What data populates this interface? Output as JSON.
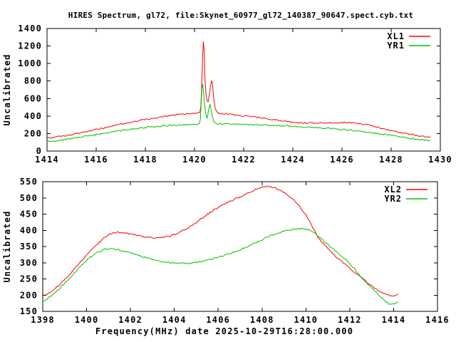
{
  "title": "HIRES Spectrum, gl72, file:Skynet_60977_gl72_140387_90647.spect.cyb.txt",
  "colors": {
    "red_series": "#ff0000",
    "green_series": "#00c000",
    "axis": "#000000",
    "background": "#ffffff",
    "text": "#000000"
  },
  "chart_data": [
    {
      "type": "line",
      "title": "",
      "xlabel": "",
      "ylabel": "Uncalibrated",
      "xlim": [
        1414,
        1430
      ],
      "ylim": [
        0,
        1400
      ],
      "xticks": [
        1414,
        1416,
        1418,
        1420,
        1422,
        1424,
        1426,
        1428,
        1430
      ],
      "yticks": [
        0,
        200,
        400,
        600,
        800,
        1000,
        1200,
        1400
      ],
      "grid": false,
      "legend_position": "top-right",
      "series": [
        {
          "name": "XL1",
          "color": "#ff0000",
          "points": [
            [
              1414.0,
              150
            ],
            [
              1414.3,
              158
            ],
            [
              1414.6,
              170
            ],
            [
              1415.0,
              188
            ],
            [
              1415.4,
              210
            ],
            [
              1415.8,
              233
            ],
            [
              1416.2,
              257
            ],
            [
              1416.6,
              283
            ],
            [
              1417.0,
              308
            ],
            [
              1417.4,
              330
            ],
            [
              1417.8,
              352
            ],
            [
              1418.2,
              370
            ],
            [
              1418.6,
              388
            ],
            [
              1419.0,
              405
            ],
            [
              1419.4,
              418
            ],
            [
              1419.8,
              428
            ],
            [
              1420.1,
              434
            ],
            [
              1420.22,
              440
            ],
            [
              1420.26,
              520
            ],
            [
              1420.3,
              800
            ],
            [
              1420.33,
              1080
            ],
            [
              1420.36,
              1250
            ],
            [
              1420.39,
              1150
            ],
            [
              1420.42,
              870
            ],
            [
              1420.46,
              660
            ],
            [
              1420.5,
              580
            ],
            [
              1420.55,
              555
            ],
            [
              1420.58,
              600
            ],
            [
              1420.62,
              680
            ],
            [
              1420.66,
              760
            ],
            [
              1420.7,
              805
            ],
            [
              1420.74,
              740
            ],
            [
              1420.78,
              600
            ],
            [
              1420.84,
              490
            ],
            [
              1420.92,
              445
            ],
            [
              1421.0,
              432
            ],
            [
              1421.4,
              420
            ],
            [
              1421.8,
              408
            ],
            [
              1422.2,
              396
            ],
            [
              1422.6,
              383
            ],
            [
              1423.0,
              368
            ],
            [
              1423.4,
              352
            ],
            [
              1423.8,
              337
            ],
            [
              1424.2,
              325
            ],
            [
              1424.6,
              320
            ],
            [
              1425.0,
              320
            ],
            [
              1425.4,
              322
            ],
            [
              1425.8,
              324
            ],
            [
              1426.2,
              324
            ],
            [
              1426.6,
              318
            ],
            [
              1427.0,
              300
            ],
            [
              1427.4,
              275
            ],
            [
              1427.8,
              248
            ],
            [
              1428.2,
              222
            ],
            [
              1428.6,
              200
            ],
            [
              1429.0,
              180
            ],
            [
              1429.3,
              168
            ],
            [
              1429.6,
              162
            ]
          ]
        },
        {
          "name": "YR1",
          "color": "#00c000",
          "points": [
            [
              1414.0,
              110
            ],
            [
              1414.3,
              118
            ],
            [
              1414.6,
              128
            ],
            [
              1415.0,
              143
            ],
            [
              1415.4,
              160
            ],
            [
              1415.8,
              178
            ],
            [
              1416.2,
              196
            ],
            [
              1416.6,
              215
            ],
            [
              1417.0,
              233
            ],
            [
              1417.4,
              250
            ],
            [
              1417.8,
              264
            ],
            [
              1418.2,
              276
            ],
            [
              1418.6,
              286
            ],
            [
              1419.0,
              293
            ],
            [
              1419.4,
              298
            ],
            [
              1419.8,
              302
            ],
            [
              1420.1,
              305
            ],
            [
              1420.2,
              308
            ],
            [
              1420.24,
              360
            ],
            [
              1420.27,
              550
            ],
            [
              1420.3,
              700
            ],
            [
              1420.33,
              768
            ],
            [
              1420.36,
              700
            ],
            [
              1420.4,
              560
            ],
            [
              1420.44,
              450
            ],
            [
              1420.48,
              395
            ],
            [
              1420.52,
              382
            ],
            [
              1420.56,
              440
            ],
            [
              1420.6,
              510
            ],
            [
              1420.63,
              528
            ],
            [
              1420.67,
              480
            ],
            [
              1420.72,
              400
            ],
            [
              1420.78,
              340
            ],
            [
              1420.86,
              318
            ],
            [
              1421.0,
              312
            ],
            [
              1421.5,
              308
            ],
            [
              1422.0,
              303
            ],
            [
              1422.5,
              298
            ],
            [
              1423.0,
              293
            ],
            [
              1423.5,
              288
            ],
            [
              1424.0,
              283
            ],
            [
              1424.5,
              276
            ],
            [
              1425.0,
              268
            ],
            [
              1425.5,
              258
            ],
            [
              1426.0,
              246
            ],
            [
              1426.5,
              233
            ],
            [
              1427.0,
              217
            ],
            [
              1427.5,
              198
            ],
            [
              1428.0,
              178
            ],
            [
              1428.5,
              157
            ],
            [
              1429.0,
              137
            ],
            [
              1429.3,
              127
            ],
            [
              1429.6,
              122
            ]
          ]
        }
      ]
    },
    {
      "type": "line",
      "title": "",
      "xlabel": "Frequency(MHz) date 2025-10-29T16:28:00.000",
      "ylabel": "Uncalibrated",
      "xlim": [
        1398,
        1416
      ],
      "ylim": [
        150,
        550
      ],
      "xticks": [
        1398,
        1400,
        1402,
        1404,
        1406,
        1408,
        1410,
        1412,
        1414,
        1416
      ],
      "yticks": [
        150,
        200,
        250,
        300,
        350,
        400,
        450,
        500,
        550
      ],
      "grid": false,
      "legend_position": "top-right",
      "series": [
        {
          "name": "XL2",
          "color": "#ff0000",
          "points": [
            [
              1398.05,
              198
            ],
            [
              1398.4,
              212
            ],
            [
              1398.8,
              234
            ],
            [
              1399.2,
              262
            ],
            [
              1399.6,
              293
            ],
            [
              1400.0,
              324
            ],
            [
              1400.4,
              352
            ],
            [
              1400.8,
              376
            ],
            [
              1401.1,
              390
            ],
            [
              1401.4,
              394
            ],
            [
              1401.8,
              391
            ],
            [
              1402.2,
              386
            ],
            [
              1402.6,
              380
            ],
            [
              1403.0,
              377
            ],
            [
              1403.4,
              377
            ],
            [
              1403.8,
              382
            ],
            [
              1404.2,
              392
            ],
            [
              1404.6,
              406
            ],
            [
              1405.0,
              424
            ],
            [
              1405.4,
              444
            ],
            [
              1405.8,
              463
            ],
            [
              1406.2,
              479
            ],
            [
              1406.6,
              491
            ],
            [
              1407.0,
              503
            ],
            [
              1407.4,
              516
            ],
            [
              1407.8,
              529
            ],
            [
              1408.1,
              536
            ],
            [
              1408.4,
              535
            ],
            [
              1408.8,
              525
            ],
            [
              1409.2,
              508
            ],
            [
              1409.6,
              484
            ],
            [
              1410.0,
              448
            ],
            [
              1410.3,
              410
            ],
            [
              1410.6,
              373
            ],
            [
              1411.0,
              344
            ],
            [
              1411.4,
              317
            ],
            [
              1411.8,
              295
            ],
            [
              1412.2,
              272
            ],
            [
              1412.6,
              251
            ],
            [
              1413.0,
              228
            ],
            [
              1413.4,
              210
            ],
            [
              1413.7,
              201
            ],
            [
              1414.0,
              198
            ],
            [
              1414.2,
              203
            ]
          ]
        },
        {
          "name": "YR2",
          "color": "#00c000",
          "points": [
            [
              1398.05,
              181
            ],
            [
              1398.4,
              198
            ],
            [
              1398.8,
              223
            ],
            [
              1399.2,
              251
            ],
            [
              1399.6,
              281
            ],
            [
              1400.0,
              308
            ],
            [
              1400.4,
              329
            ],
            [
              1400.8,
              341
            ],
            [
              1401.1,
              344
            ],
            [
              1401.4,
              341
            ],
            [
              1401.8,
              334
            ],
            [
              1402.2,
              326
            ],
            [
              1402.6,
              318
            ],
            [
              1403.0,
              310
            ],
            [
              1403.4,
              304
            ],
            [
              1403.8,
              301
            ],
            [
              1404.2,
              299
            ],
            [
              1404.6,
              298
            ],
            [
              1405.0,
              301
            ],
            [
              1405.4,
              306
            ],
            [
              1405.8,
              313
            ],
            [
              1406.2,
              321
            ],
            [
              1406.6,
              330
            ],
            [
              1407.0,
              340
            ],
            [
              1407.4,
              352
            ],
            [
              1407.8,
              365
            ],
            [
              1408.2,
              378
            ],
            [
              1408.6,
              389
            ],
            [
              1409.0,
              397
            ],
            [
              1409.4,
              403
            ],
            [
              1409.8,
              405
            ],
            [
              1410.2,
              400
            ],
            [
              1410.6,
              380
            ],
            [
              1411.0,
              356
            ],
            [
              1411.4,
              334
            ],
            [
              1411.8,
              310
            ],
            [
              1412.2,
              282
            ],
            [
              1412.35,
              268
            ],
            [
              1412.6,
              250
            ],
            [
              1413.0,
              222
            ],
            [
              1413.4,
              196
            ],
            [
              1413.7,
              176
            ],
            [
              1413.9,
              171
            ],
            [
              1414.1,
              174
            ],
            [
              1414.2,
              180
            ]
          ]
        }
      ]
    }
  ]
}
